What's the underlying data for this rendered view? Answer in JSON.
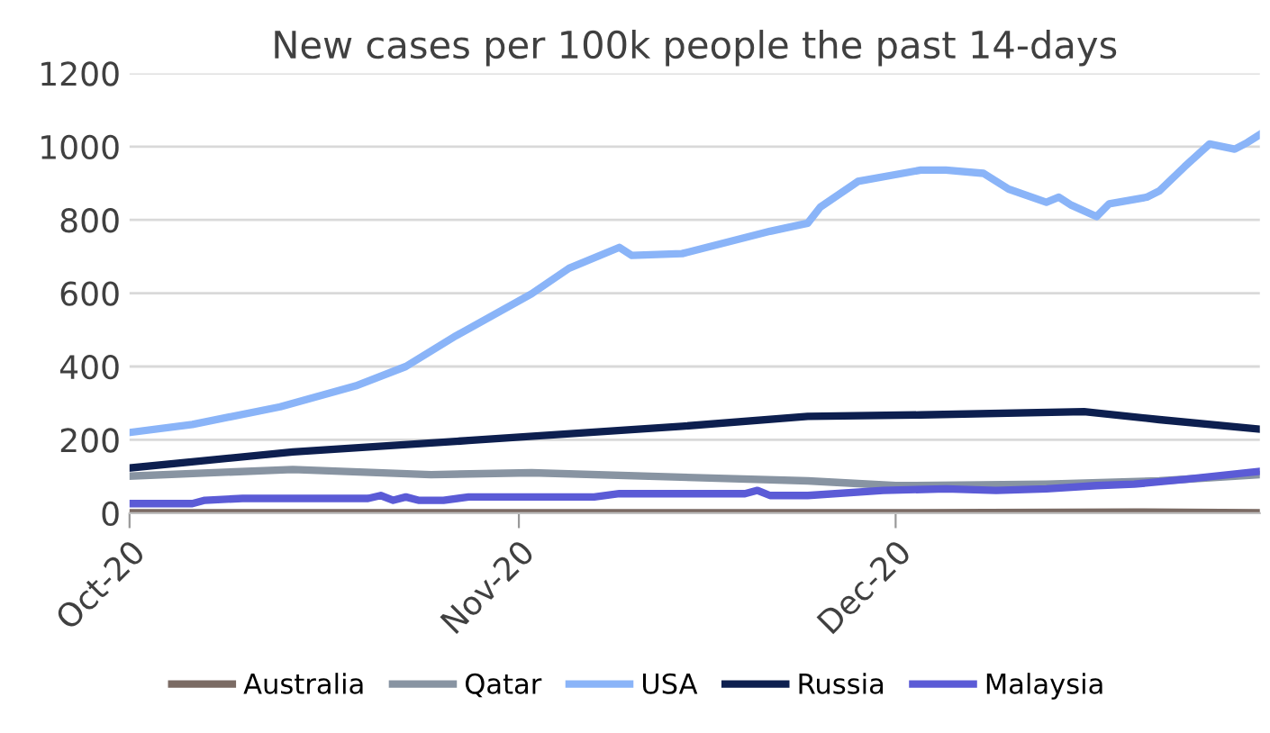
{
  "chart_data": {
    "type": "line",
    "title": "New cases per 100k people the past 14-days",
    "xlim": [
      "2020-10-01",
      "2020-12-30"
    ],
    "xticks": [
      {
        "value": "2020-10-01",
        "label": "Oct-20"
      },
      {
        "value": "2020-11-01",
        "label": "Nov-20"
      },
      {
        "value": "2020-12-01",
        "label": "Dec-20"
      }
    ],
    "ylim": [
      0,
      1200
    ],
    "yticks": [
      0,
      200,
      400,
      600,
      800,
      1000,
      1200
    ],
    "grid": "y",
    "legend": "bottom",
    "marker": "none",
    "line_style": "solid",
    "series": [
      {
        "name": "Australia",
        "color": "#7b6b64",
        "x": [
          "2020-10-01",
          "2020-12-01",
          "2020-12-20",
          "2020-12-30"
        ],
        "values": [
          1,
          1,
          3,
          1
        ]
      },
      {
        "name": "Qatar",
        "color": "#8894a2",
        "x": [
          "2020-10-01",
          "2020-10-14",
          "2020-10-25",
          "2020-11-02",
          "2020-11-15",
          "2020-11-24",
          "2020-12-01",
          "2020-12-13",
          "2020-12-22",
          "2020-12-30"
        ],
        "values": [
          101,
          119,
          105,
          110,
          97,
          88,
          75,
          79,
          88,
          105
        ]
      },
      {
        "name": "USA",
        "color": "#8ab4f8",
        "x": [
          "2020-10-01",
          "2020-10-06",
          "2020-10-13",
          "2020-10-19",
          "2020-10-23",
          "2020-10-27",
          "2020-11-02",
          "2020-11-05",
          "2020-11-09",
          "2020-11-10",
          "2020-11-14",
          "2020-11-21",
          "2020-11-24",
          "2020-11-25",
          "2020-11-28",
          "2020-12-03",
          "2020-12-05",
          "2020-12-08",
          "2020-12-10",
          "2020-12-13",
          "2020-12-14",
          "2020-12-15",
          "2020-12-17",
          "2020-12-18",
          "2020-12-21",
          "2020-12-22",
          "2020-12-24",
          "2020-12-26",
          "2020-12-28",
          "2020-12-29",
          "2020-12-30"
        ],
        "values": [
          220,
          242,
          290,
          347,
          400,
          484,
          598,
          668,
          725,
          703,
          708,
          769,
          791,
          835,
          905,
          936,
          936,
          927,
          884,
          848,
          862,
          840,
          809,
          844,
          862,
          879,
          945,
          1007,
          993,
          1011,
          1033
        ]
      },
      {
        "name": "Russia",
        "color": "#0d1f4f",
        "x": [
          "2020-10-01",
          "2020-10-14",
          "2020-10-28",
          "2020-11-14",
          "2020-11-24",
          "2020-12-03",
          "2020-12-16",
          "2020-12-22",
          "2020-12-30"
        ],
        "values": [
          123,
          167,
          198,
          237,
          264,
          268,
          277,
          255,
          229
        ]
      },
      {
        "name": "Malaysia",
        "color": "#5b5bd6",
        "x": [
          "2020-10-01",
          "2020-10-06",
          "2020-10-07",
          "2020-10-10",
          "2020-10-20",
          "2020-10-21",
          "2020-10-22",
          "2020-10-23",
          "2020-10-24",
          "2020-10-26",
          "2020-10-28",
          "2020-11-07",
          "2020-11-09",
          "2020-11-19",
          "2020-11-20",
          "2020-11-21",
          "2020-11-24",
          "2020-11-30",
          "2020-12-05",
          "2020-12-09",
          "2020-12-13",
          "2020-12-17",
          "2020-12-20",
          "2020-12-24",
          "2020-12-30"
        ],
        "values": [
          26,
          26,
          35,
          40,
          40,
          48,
          35,
          44,
          35,
          35,
          44,
          44,
          53,
          53,
          62,
          48,
          48,
          62,
          66,
          62,
          66,
          75,
          79,
          92,
          114
        ]
      }
    ]
  }
}
